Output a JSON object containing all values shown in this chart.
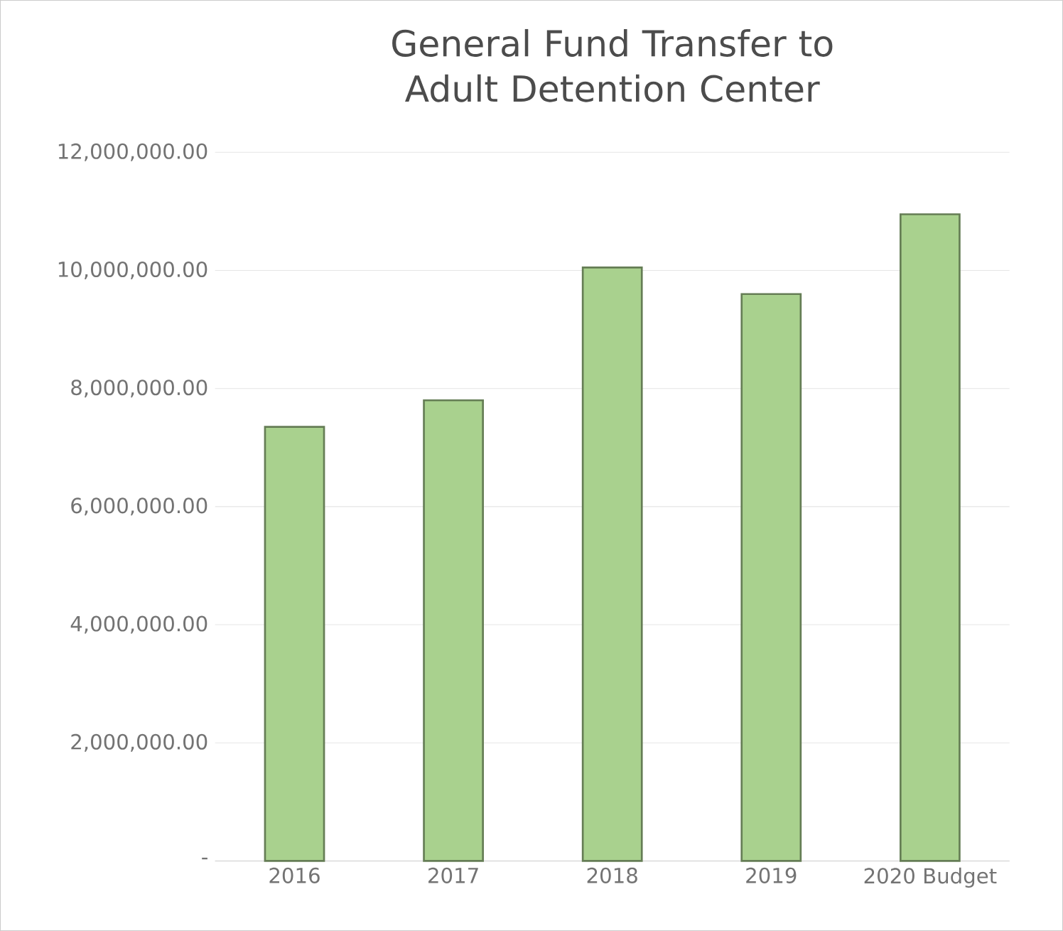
{
  "chart_data": {
    "type": "bar",
    "title": "General Fund Transfer to Adult Detention Center",
    "categories": [
      "2016",
      "2017",
      "2018",
      "2019",
      "2020 Budget"
    ],
    "values": [
      7350000,
      7800000,
      10050000,
      9600000,
      10950000
    ],
    "color": "#a9d18e",
    "ylim": [
      0,
      12000000
    ],
    "yticks": [
      {
        "value": 0,
        "label": "-"
      },
      {
        "value": 2000000,
        "label": "2,000,000.00"
      },
      {
        "value": 4000000,
        "label": "4,000,000.00"
      },
      {
        "value": 6000000,
        "label": "6,000,000.00"
      },
      {
        "value": 8000000,
        "label": "8,000,000.00"
      },
      {
        "value": 10000000,
        "label": "10,000,000.00"
      },
      {
        "value": 12000000,
        "label": "12,000,000.00"
      }
    ],
    "grid": "y"
  }
}
